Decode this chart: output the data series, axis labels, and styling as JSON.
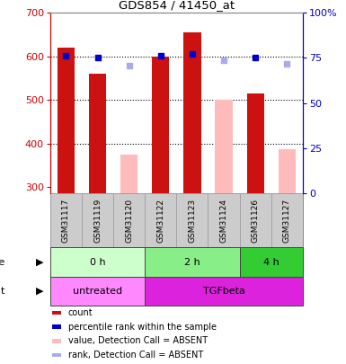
{
  "title": "GDS854 / 41450_at",
  "samples": [
    "GSM31117",
    "GSM31119",
    "GSM31120",
    "GSM31122",
    "GSM31123",
    "GSM31124",
    "GSM31126",
    "GSM31127"
  ],
  "count_values": [
    620,
    560,
    null,
    600,
    655,
    null,
    515,
    null
  ],
  "count_absent_values": [
    null,
    null,
    375,
    null,
    null,
    500,
    null,
    388
  ],
  "rank_values": [
    76,
    75,
    null,
    76,
    77,
    null,
    75,
    null
  ],
  "rank_absent_values": [
    null,
    null,
    71,
    null,
    null,
    74,
    null,
    72
  ],
  "ylim_left": [
    285,
    700
  ],
  "ylim_right": [
    0,
    100
  ],
  "yticks_left": [
    300,
    400,
    500,
    600,
    700
  ],
  "yticks_right": [
    0,
    25,
    50,
    75,
    100
  ],
  "ytick_right_labels": [
    "0",
    "25",
    "50",
    "75",
    "100%"
  ],
  "gridlines": [
    400,
    500,
    600
  ],
  "time_groups": [
    {
      "label": "0 h",
      "start": 0,
      "end": 3,
      "color": "#ccffcc"
    },
    {
      "label": "2 h",
      "start": 3,
      "end": 6,
      "color": "#88ee88"
    },
    {
      "label": "4 h",
      "start": 6,
      "end": 8,
      "color": "#33cc33"
    }
  ],
  "agent_groups": [
    {
      "label": "untreated",
      "start": 0,
      "end": 3,
      "color": "#ff88ff"
    },
    {
      "label": "TGFbeta",
      "start": 3,
      "end": 8,
      "color": "#dd22dd"
    }
  ],
  "color_bar_present": "#cc1111",
  "color_bar_absent": "#ffbbbb",
  "color_rank_present": "#0000cc",
  "color_rank_absent": "#aaaaee",
  "legend_items": [
    {
      "color": "#cc1111",
      "label": "count"
    },
    {
      "color": "#0000cc",
      "label": "percentile rank within the sample"
    },
    {
      "color": "#ffbbbb",
      "label": "value, Detection Call = ABSENT"
    },
    {
      "color": "#aaaaee",
      "label": "rank, Detection Call = ABSENT"
    }
  ],
  "left_axis_color": "#cc0000",
  "right_axis_color": "#0000cc",
  "sample_box_color": "#cccccc",
  "sample_box_edge": "#999999",
  "bar_width": 0.55
}
